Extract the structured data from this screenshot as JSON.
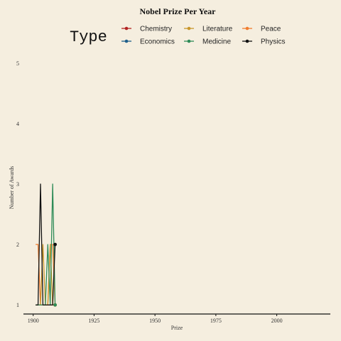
{
  "chart_data": {
    "type": "line",
    "title": "Nobel Prize Per Year",
    "xlabel": "Prize",
    "ylabel": "Number of Awards",
    "xlim": [
      1896,
      2022
    ],
    "ylim": [
      0.85,
      5.15
    ],
    "x_ticks": [
      1900,
      1925,
      1950,
      1975,
      2000
    ],
    "y_ticks": [
      1,
      2,
      3,
      4,
      5
    ],
    "grid": false,
    "legend": {
      "title": "Type",
      "position": "top"
    },
    "series": [
      {
        "name": "Chemistry",
        "color": "#b22222",
        "x": [
          1901,
          1902,
          1903,
          1904,
          1905,
          1906,
          1907,
          1908,
          1909
        ],
        "y": [
          1,
          1,
          1,
          1,
          1,
          1,
          1,
          1,
          1
        ]
      },
      {
        "name": "Economics",
        "color": "#1f5f8b",
        "x": [],
        "y": []
      },
      {
        "name": "Literature",
        "color": "#c8962a",
        "x": [
          1901,
          1902,
          1903,
          1904,
          1905,
          1906,
          1907,
          1908,
          1909
        ],
        "y": [
          1,
          1,
          1,
          2,
          1,
          1,
          2,
          1,
          1
        ]
      },
      {
        "name": "Medicine",
        "color": "#2e8b57",
        "x": [
          1901,
          1902,
          1903,
          1904,
          1905,
          1906,
          1907,
          1908,
          1909
        ],
        "y": [
          1,
          1,
          1,
          1,
          1,
          2,
          1,
          3,
          1
        ]
      },
      {
        "name": "Peace",
        "color": "#f07d2e",
        "x": [
          1901,
          1902,
          1903,
          1904,
          1905,
          1906,
          1907,
          1908,
          1909
        ],
        "y": [
          2,
          2,
          1,
          1,
          1,
          1,
          2,
          2,
          1
        ]
      },
      {
        "name": "Physics",
        "color": "#111111",
        "x": [
          1901,
          1902,
          1903,
          1904,
          1905,
          1906,
          1907,
          1908,
          1909
        ],
        "y": [
          1,
          1,
          3,
          1,
          1,
          1,
          1,
          1,
          2
        ]
      }
    ]
  }
}
